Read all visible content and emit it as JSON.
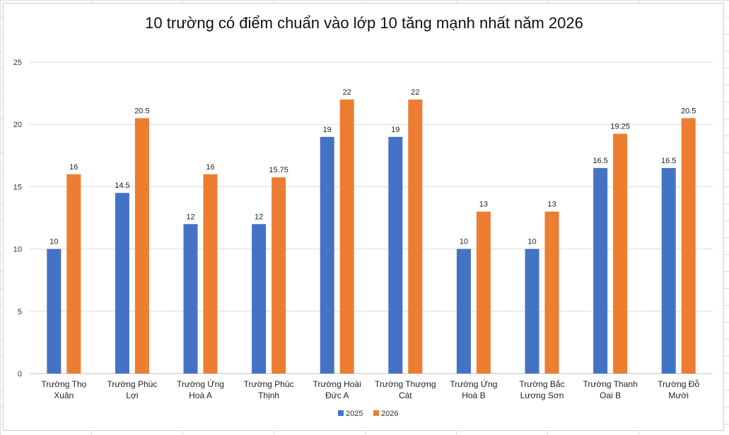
{
  "chart_data": {
    "type": "bar",
    "title": "10 trường có điểm chuẩn vào lớp 10 tăng mạnh nhất năm 2026",
    "xlabel": "",
    "ylabel": "",
    "ylim": [
      0,
      25
    ],
    "yticks": [
      "0",
      "5",
      "10",
      "15",
      "20",
      "25"
    ],
    "grid": "horizontal",
    "legend_position": "bottom",
    "categories": [
      [
        "Trường Thọ",
        "Xuân"
      ],
      [
        "Trường Phúc",
        "Lợi"
      ],
      [
        "Trường Ứng",
        "Hoà A"
      ],
      [
        "Trường Phúc",
        "Thịnh"
      ],
      [
        "Trường Hoài",
        "Đức A"
      ],
      [
        "Trường Thượng",
        "Cát"
      ],
      [
        "Trường Ứng",
        "Hoà B"
      ],
      [
        "Trường Bắc",
        "Lương Sơn"
      ],
      [
        "Trường Thanh",
        "Oai B"
      ],
      [
        "Trường Đỗ",
        "Mười"
      ]
    ],
    "series": [
      {
        "name": "2025",
        "color": "#4472C4",
        "values": [
          10,
          14.5,
          12,
          12,
          19,
          19,
          10,
          10,
          16.5,
          16.5
        ],
        "labels": [
          "10",
          "14.5",
          "12",
          "12",
          "19",
          "19",
          "10",
          "10",
          "16.5",
          "16.5"
        ]
      },
      {
        "name": "2026",
        "color": "#ED7D31",
        "values": [
          16,
          20.5,
          16,
          15.75,
          22,
          22,
          13,
          13,
          19.25,
          20.5
        ],
        "labels": [
          "16",
          "20.5",
          "16",
          "15.75",
          "22",
          "22",
          "13",
          "13",
          "19.25",
          "20.5"
        ]
      }
    ]
  }
}
